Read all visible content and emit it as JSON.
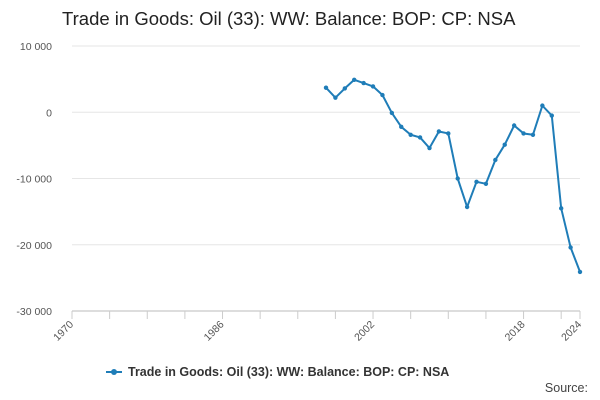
{
  "chart_data": {
    "type": "line",
    "title": "Trade in Goods: Oil (33): WW: Balance: BOP: CP: NSA",
    "xlabel": "",
    "ylabel": "",
    "x_ticks": [
      "1970",
      "1986",
      "2002",
      "2018",
      "2024"
    ],
    "y_ticks": [
      "10 000",
      "0",
      "-10 000",
      "-20 000",
      "-30 000"
    ],
    "xlim": [
      1970,
      2024
    ],
    "ylim": [
      -30000,
      10000
    ],
    "grid": "horizontal",
    "legend_position": "bottom",
    "series": [
      {
        "name": "Trade in Goods: Oil (33): WW: Balance: BOP: CP: NSA",
        "color": "#1f7db8",
        "x": [
          1997,
          1998,
          1999,
          2000,
          2001,
          2002,
          2003,
          2004,
          2005,
          2006,
          2007,
          2008,
          2009,
          2010,
          2011,
          2012,
          2013,
          2014,
          2015,
          2016,
          2017,
          2018,
          2019,
          2020,
          2021,
          2022,
          2023,
          2024
        ],
        "values": [
          3700,
          2200,
          3600,
          4900,
          4400,
          3900,
          2600,
          -100,
          -2200,
          -3400,
          -3800,
          -5400,
          -2900,
          -3200,
          -10000,
          -14300,
          -10500,
          -10800,
          -7200,
          -4900,
          -2000,
          -3200,
          -3400,
          1000,
          -500,
          -14500,
          -20400,
          -24100
        ]
      }
    ]
  },
  "legend": {
    "label": "Trade in Goods: Oil (33): WW: Balance: BOP: CP: NSA"
  },
  "footer": {
    "source_label": "Source:"
  }
}
